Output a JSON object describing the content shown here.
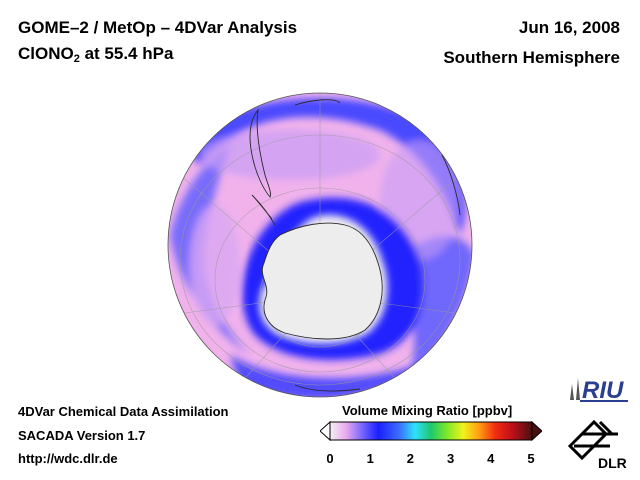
{
  "header": {
    "title_line1": "GOME–2 / MetOp – 4DVar Analysis",
    "species_main": "ClONO",
    "species_sub": "2",
    "species_rest": " at 55.4 hPa",
    "date": "Jun 16, 2008",
    "region": "Southern Hemisphere"
  },
  "footer": {
    "line1": "4DVar Chemical Data Assimilation",
    "line2": "SACADA Version 1.7",
    "line3": "http://wdc.dlr.de"
  },
  "colorbar": {
    "title": "Volume Mixing Ratio [ppbv]",
    "ticks": [
      "0",
      "1",
      "2",
      "3",
      "4",
      "5"
    ],
    "range": [
      0,
      5
    ]
  },
  "logos": {
    "riu": "RIU",
    "dlr": "DLR"
  },
  "colors": {
    "field_low": "#f2eef0",
    "field_pink": "#f1b2ec",
    "field_violet": "#c79cf5",
    "field_blue": "#3434ff",
    "background": "#ffffff"
  }
}
